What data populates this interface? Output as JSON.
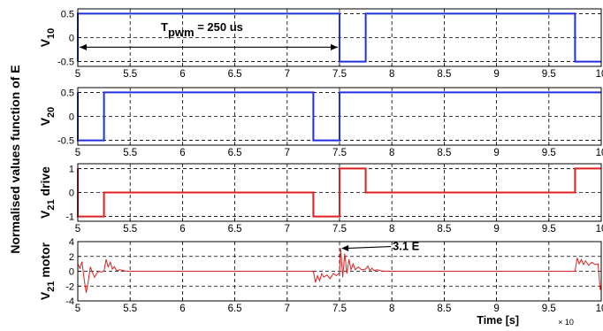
{
  "figure": {
    "ylabel": "Normalised values function of E",
    "xlabel": "Time [s]",
    "x_exponent": "× 10",
    "annotations": {
      "tpwm_main": "T",
      "tpwm_sub": "pwm",
      "tpwm_value": " = 250 us",
      "peak": "3.1 E"
    }
  },
  "chart_data": [
    {
      "type": "line",
      "ylabel_main": "V",
      "ylabel_sub": "10",
      "ylabel_suffix": "",
      "xlim": [
        5,
        10
      ],
      "ylim": [
        -0.6,
        0.6
      ],
      "xticks": [
        "5",
        "5.5",
        "6",
        "6.5",
        "7",
        "7.5",
        "8",
        "8.5",
        "9",
        "9.5",
        "10"
      ],
      "yticks": [
        "0.5",
        "0",
        "-0.5"
      ],
      "ytick_values": [
        0.5,
        0,
        -0.5
      ],
      "grid": true,
      "color": "#2030e0",
      "series": [
        {
          "x": [
            5,
            5,
            7.5,
            7.5,
            7.75,
            7.75,
            9.75,
            9.75,
            10
          ],
          "y": [
            -0.5,
            0.5,
            0.5,
            -0.5,
            -0.5,
            0.5,
            0.5,
            -0.5,
            -0.5
          ]
        }
      ]
    },
    {
      "type": "line",
      "ylabel_main": "V",
      "ylabel_sub": "20",
      "ylabel_suffix": "",
      "xlim": [
        5,
        10
      ],
      "ylim": [
        -0.6,
        0.6
      ],
      "xticks": [
        "5",
        "5.5",
        "6",
        "6.5",
        "7",
        "7.5",
        "8",
        "8.5",
        "9",
        "9.5",
        "10"
      ],
      "yticks": [
        "0.5",
        "0",
        "-0.5"
      ],
      "ytick_values": [
        0.5,
        0,
        -0.5
      ],
      "grid": true,
      "color": "#2030e0",
      "series": [
        {
          "x": [
            5,
            5,
            5.25,
            5.25,
            7.25,
            7.25,
            7.5,
            7.5,
            10
          ],
          "y": [
            0.5,
            -0.5,
            -0.5,
            0.5,
            0.5,
            -0.5,
            -0.5,
            0.5,
            0.5
          ]
        }
      ]
    },
    {
      "type": "line",
      "ylabel_main": "V",
      "ylabel_sub": "21",
      "ylabel_suffix": " drive",
      "xlim": [
        5,
        10
      ],
      "ylim": [
        -1.2,
        1.2
      ],
      "xticks": [
        "5",
        "5.5",
        "6",
        "6.5",
        "7",
        "7.5",
        "8",
        "8.5",
        "9",
        "9.5",
        "10"
      ],
      "yticks": [
        "1",
        "0",
        "-1"
      ],
      "ytick_values": [
        1,
        0,
        -1
      ],
      "grid": true,
      "color": "#e02020",
      "series": [
        {
          "x": [
            5,
            5,
            5.25,
            5.25,
            7.25,
            7.25,
            7.5,
            7.5,
            7.75,
            7.75,
            9.75,
            9.75,
            10
          ],
          "y": [
            1,
            -1,
            -1,
            0,
            0,
            -1,
            -1,
            1,
            1,
            0,
            0,
            1,
            1
          ]
        }
      ]
    },
    {
      "type": "line",
      "ylabel_main": "V",
      "ylabel_sub": "21",
      "ylabel_suffix": " motor",
      "xlim": [
        5,
        10
      ],
      "ylim": [
        -4,
        4
      ],
      "xticks": [
        "5",
        "5.5",
        "6",
        "6.5",
        "7",
        "7.5",
        "8",
        "8.5",
        "9",
        "9.5",
        "10"
      ],
      "yticks": [
        "4",
        "2",
        "0",
        "-2",
        "-4"
      ],
      "ytick_values": [
        4,
        2,
        0,
        -2,
        -4
      ],
      "grid": true,
      "color": "#e02020",
      "peak_value": 3.1,
      "series": [
        {
          "x": [
            5,
            5.02,
            5.04,
            5.06,
            5.08,
            5.1,
            5.12,
            5.14,
            5.16,
            5.18,
            5.2,
            5.22,
            5.25,
            5.27,
            5.29,
            5.31,
            5.33,
            5.35,
            5.37,
            5.4,
            5.45,
            5.5,
            6,
            6.5,
            7,
            7.25,
            7.27,
            7.29,
            7.31,
            7.33,
            7.35,
            7.38,
            7.41,
            7.44,
            7.47,
            7.5,
            7.51,
            7.53,
            7.55,
            7.57,
            7.59,
            7.61,
            7.63,
            7.65,
            7.68,
            7.71,
            7.75,
            7.77,
            7.79,
            7.81,
            7.83,
            7.86,
            7.9,
            8,
            8.5,
            9,
            9.5,
            9.75,
            9.77,
            9.79,
            9.81,
            9.83,
            9.85,
            9.88,
            9.91,
            9.94,
            9.97,
            9.99,
            10
          ],
          "y": [
            1.0,
            0.4,
            1.3,
            -1.0,
            -2.9,
            -1.4,
            0.6,
            -0.2,
            -0.8,
            -0.3,
            0.0,
            -0.1,
            0.0,
            1.6,
            0.6,
            1.2,
            0.3,
            0.6,
            0.1,
            0.2,
            0.05,
            0,
            0,
            0,
            0,
            0,
            -1.5,
            -0.6,
            -1.3,
            -0.3,
            -0.8,
            -0.5,
            -1.0,
            -0.3,
            -0.6,
            -0.2,
            3.1,
            -0.8,
            2.4,
            -0.3,
            1.6,
            0.2,
            1.0,
            0.2,
            0.6,
            0.2,
            0.3,
            0.7,
            0.1,
            0.4,
            0.1,
            0.2,
            0.05,
            0,
            0,
            0,
            0,
            0,
            1.8,
            1.0,
            1.6,
            0.9,
            1.4,
            0.8,
            1.2,
            0.9,
            1.0,
            -2.5,
            -2.0
          ]
        }
      ]
    }
  ]
}
